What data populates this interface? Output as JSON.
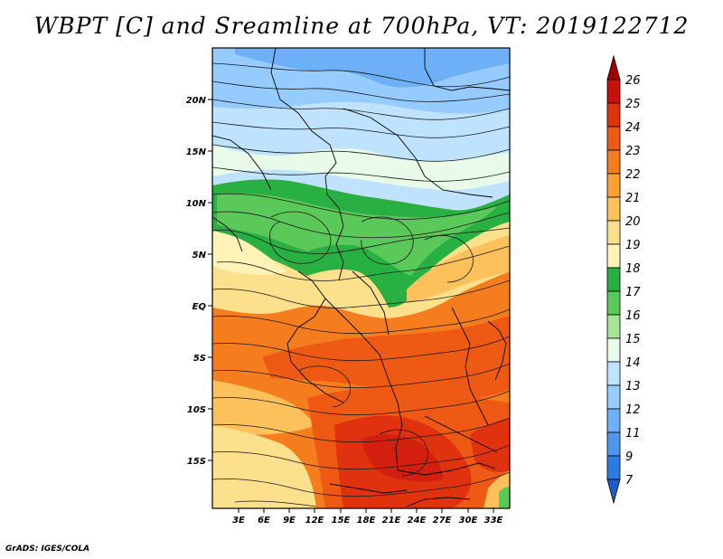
{
  "title": "WBPT [C] and Sreamline at 700hPa, VT: 2019122712",
  "footer": "GrADS: IGES/COLA",
  "map": {
    "lat_labels": [
      "20N",
      "15N",
      "10N",
      "5N",
      "EQ",
      "5S",
      "10S",
      "15S"
    ],
    "lon_labels": [
      "3E",
      "6E",
      "9E",
      "12E",
      "15E",
      "18E",
      "21E",
      "24E",
      "27E",
      "30E",
      "33E"
    ]
  },
  "colorbar": {
    "labels": [
      "26",
      "25",
      "24",
      "23",
      "22",
      "21",
      "20",
      "19",
      "18",
      "17",
      "16",
      "15",
      "14",
      "13",
      "12",
      "11",
      "9",
      "7"
    ],
    "colors": [
      "#a50000",
      "#c8100c",
      "#e1320f",
      "#ee5a14",
      "#f57d1e",
      "#f8a032",
      "#fcc15a",
      "#fde08c",
      "#fff3b8",
      "#29b042",
      "#5bc85a",
      "#a6e596",
      "#e8fbe8",
      "#bfe3ff",
      "#96cbff",
      "#6eb0f8",
      "#4f96ee",
      "#2d7be0",
      "#1c5ccf"
    ]
  }
}
